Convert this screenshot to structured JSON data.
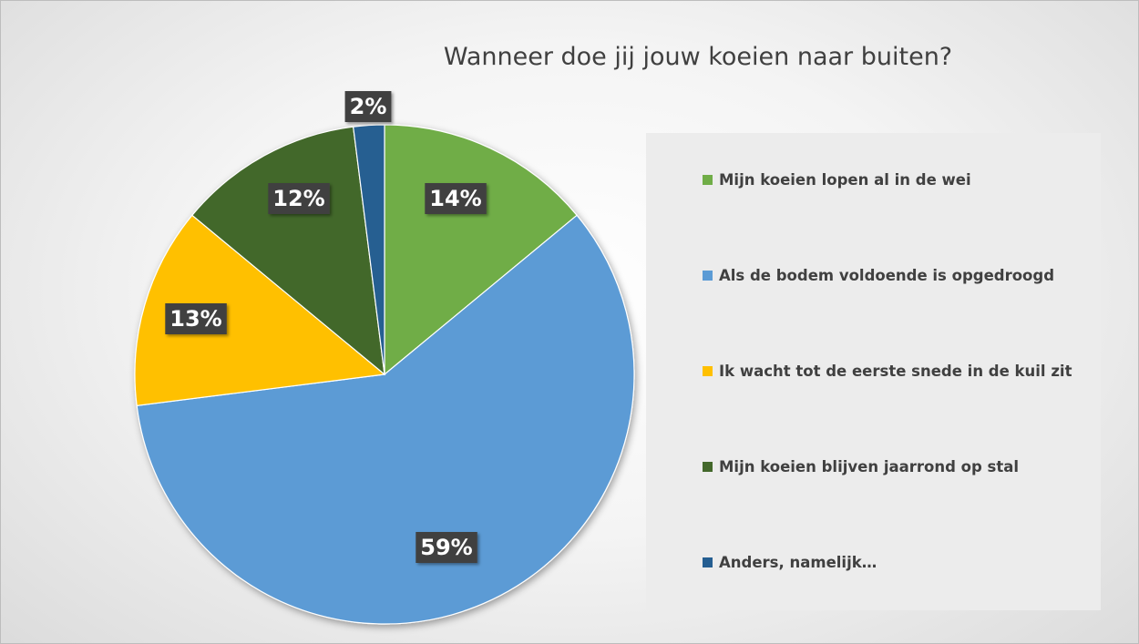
{
  "chart_data": {
    "type": "pie",
    "title": "Wanneer doe jij jouw koeien naar buiten?",
    "slices": [
      {
        "label": "Mijn koeien lopen al in de wei",
        "value": 14,
        "data_label": "14%",
        "color": "#70ad47"
      },
      {
        "label": "Als de bodem voldoende is opgedroogd",
        "value": 59,
        "data_label": "59%",
        "color": "#5b9bd5"
      },
      {
        "label": "Ik wacht tot de eerste snede in de kuil zit",
        "value": 13,
        "data_label": "13%",
        "color": "#ffc000"
      },
      {
        "label": "Mijn koeien blijven jaarrond op stal",
        "value": 12,
        "data_label": "12%",
        "color": "#43682b"
      },
      {
        "label": "Anders, namelijk…",
        "value": 2,
        "data_label": "2%",
        "color": "#255e91"
      }
    ],
    "legend_position": "right",
    "data_label_style": {
      "background": "#404040",
      "color": "#ffffff"
    }
  }
}
